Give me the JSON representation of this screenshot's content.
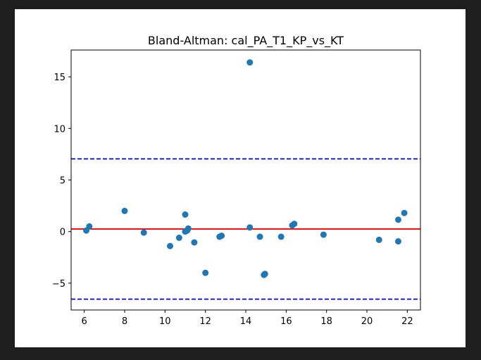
{
  "chart_data": {
    "type": "scatter",
    "title": "Bland-Altman: cal_PA_T1_KP_vs_KT",
    "xlabel": "",
    "ylabel": "",
    "xlim": [
      5.35,
      22.65
    ],
    "ylim": [
      -7.6,
      17.6
    ],
    "x_ticks": [
      6,
      8,
      10,
      12,
      14,
      16,
      18,
      20,
      22
    ],
    "y_ticks": [
      -5,
      0,
      5,
      10,
      15
    ],
    "x_tick_labels": [
      "6",
      "8",
      "10",
      "12",
      "14",
      "16",
      "18",
      "20",
      "22"
    ],
    "y_tick_labels": [
      "−5",
      "0",
      "5",
      "10",
      "15"
    ],
    "grid": false,
    "marker_color": "#1f77b4",
    "points": [
      {
        "x": 6.1,
        "y": 0.1
      },
      {
        "x": 6.25,
        "y": 0.5
      },
      {
        "x": 8.0,
        "y": 2.0
      },
      {
        "x": 8.95,
        "y": -0.1
      },
      {
        "x": 10.25,
        "y": -1.4
      },
      {
        "x": 10.7,
        "y": -0.6
      },
      {
        "x": 11.0,
        "y": 1.65
      },
      {
        "x": 11.0,
        "y": 0.0
      },
      {
        "x": 11.1,
        "y": 0.1
      },
      {
        "x": 11.15,
        "y": 0.3
      },
      {
        "x": 11.45,
        "y": -1.05
      },
      {
        "x": 12.0,
        "y": -4.0
      },
      {
        "x": 12.7,
        "y": -0.5
      },
      {
        "x": 12.8,
        "y": -0.4
      },
      {
        "x": 14.2,
        "y": 16.4
      },
      {
        "x": 14.2,
        "y": 0.4
      },
      {
        "x": 14.7,
        "y": -0.5
      },
      {
        "x": 14.9,
        "y": -4.2
      },
      {
        "x": 14.95,
        "y": -4.1
      },
      {
        "x": 15.75,
        "y": -0.5
      },
      {
        "x": 16.3,
        "y": 0.6
      },
      {
        "x": 16.4,
        "y": 0.75
      },
      {
        "x": 17.85,
        "y": -0.3
      },
      {
        "x": 20.6,
        "y": -0.8
      },
      {
        "x": 21.55,
        "y": -0.95
      },
      {
        "x": 21.55,
        "y": 1.15
      },
      {
        "x": 21.85,
        "y": 1.8
      }
    ],
    "mean_line": {
      "y": 0.25,
      "color": "#ff0000",
      "style": "solid"
    },
    "limit_lines": [
      {
        "y": 7.05,
        "color": "#0000cc",
        "style": "dashed"
      },
      {
        "y": -6.55,
        "color": "#0000cc",
        "style": "dashed"
      }
    ]
  }
}
